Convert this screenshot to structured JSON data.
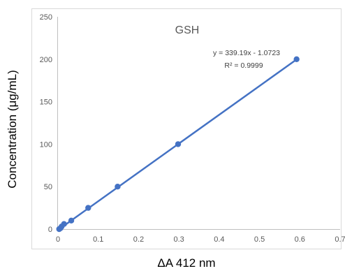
{
  "chart_data": {
    "type": "scatter",
    "title": "GSH",
    "xlabel": "ΔA 412 nm",
    "ylabel": "Concentration (μg/mL)",
    "xlim": [
      0,
      0.7
    ],
    "ylim": [
      0,
      250
    ],
    "x_ticks": [
      "0",
      "0.1",
      "0.2",
      "0.3",
      "0.4",
      "0.5",
      "0.6",
      "0.7"
    ],
    "y_ticks": [
      "0",
      "50",
      "100",
      "150",
      "200",
      "250"
    ],
    "grid": false,
    "series": [
      {
        "x": [
          0.003,
          0.006,
          0.009,
          0.015,
          0.033,
          0.075,
          0.148,
          0.298,
          0.592
        ],
        "y": [
          0,
          1,
          3,
          6,
          10,
          25,
          50,
          100,
          200
        ],
        "color": "#4472c4"
      }
    ],
    "trendline": {
      "equation": "y = 339.19x - 1.0723",
      "r2": "R² = 0.9999",
      "slope": 339.19,
      "intercept": -1.0723,
      "color": "#4472c4"
    }
  }
}
